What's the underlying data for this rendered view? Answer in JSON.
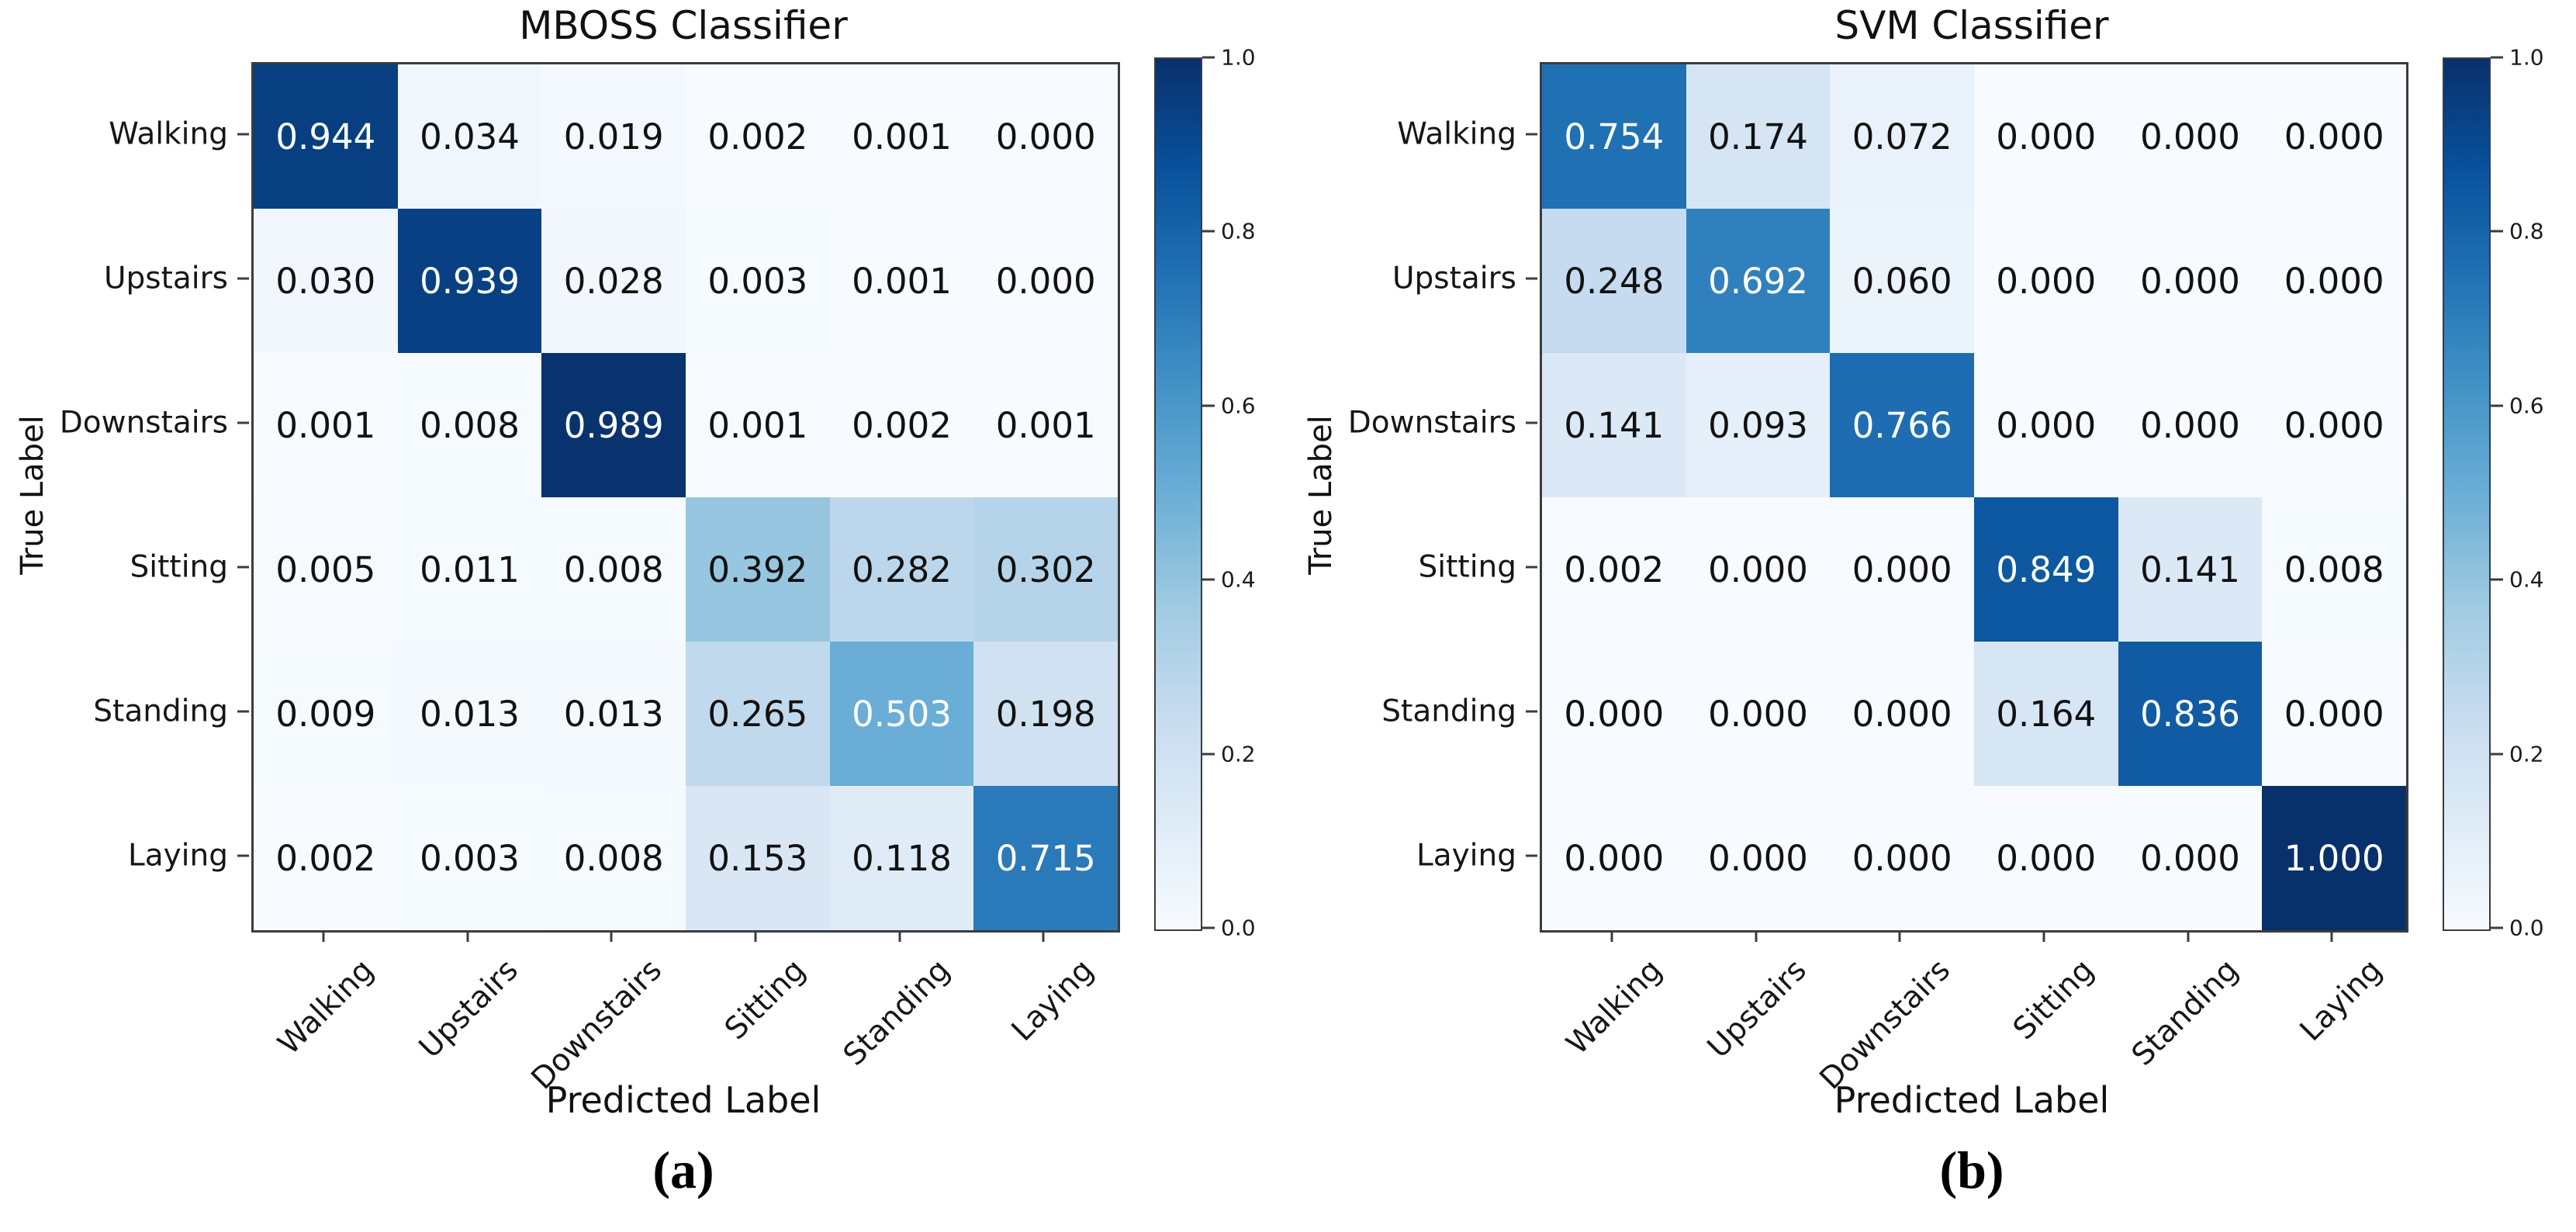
{
  "figure": {
    "caption_a": "(a)",
    "caption_b": "(b)"
  },
  "chart_data": [
    {
      "type": "heatmap",
      "title": "MBOSS Classifier",
      "xlabel": "Predicted Label",
      "ylabel": "True Label",
      "x_categories": [
        "Walking",
        "Upstairs",
        "Downstairs",
        "Sitting",
        "Standing",
        "Laying"
      ],
      "y_categories": [
        "Walking",
        "Upstairs",
        "Downstairs",
        "Sitting",
        "Standing",
        "Laying"
      ],
      "rows": [
        [
          0.944,
          0.034,
          0.019,
          0.002,
          0.001,
          0.0
        ],
        [
          0.03,
          0.939,
          0.028,
          0.003,
          0.001,
          0.0
        ],
        [
          0.001,
          0.008,
          0.989,
          0.001,
          0.002,
          0.001
        ],
        [
          0.005,
          0.011,
          0.008,
          0.392,
          0.282,
          0.302
        ],
        [
          0.009,
          0.013,
          0.013,
          0.265,
          0.503,
          0.198
        ],
        [
          0.002,
          0.003,
          0.008,
          0.153,
          0.118,
          0.715
        ]
      ],
      "value_range": [
        0,
        1
      ],
      "colormap": "Blues",
      "colorbar_ticks": [
        "1.0",
        "0.8",
        "0.6",
        "0.4",
        "0.2",
        "0.0"
      ],
      "legend_position": "right"
    },
    {
      "type": "heatmap",
      "title": "SVM Classifier",
      "xlabel": "Predicted Label",
      "ylabel": "True Label",
      "x_categories": [
        "Walking",
        "Upstairs",
        "Downstairs",
        "Sitting",
        "Standing",
        "Laying"
      ],
      "y_categories": [
        "Walking",
        "Upstairs",
        "Downstairs",
        "Sitting",
        "Standing",
        "Laying"
      ],
      "rows": [
        [
          0.754,
          0.174,
          0.072,
          0.0,
          0.0,
          0.0
        ],
        [
          0.248,
          0.692,
          0.06,
          0.0,
          0.0,
          0.0
        ],
        [
          0.141,
          0.093,
          0.766,
          0.0,
          0.0,
          0.0
        ],
        [
          0.002,
          0.0,
          0.0,
          0.849,
          0.141,
          0.008
        ],
        [
          0.0,
          0.0,
          0.0,
          0.164,
          0.836,
          0.0
        ],
        [
          0.0,
          0.0,
          0.0,
          0.0,
          0.0,
          1.0
        ]
      ],
      "value_range": [
        0,
        1
      ],
      "colormap": "Blues",
      "colorbar_ticks": [
        "1.0",
        "0.8",
        "0.6",
        "0.4",
        "0.2",
        "0.0"
      ],
      "legend_position": "right"
    }
  ],
  "colors": {
    "background": "#ffffff",
    "text": "#111111",
    "cell_text_dark": "#111111",
    "cell_text_light": "#ffffff",
    "spine": "#3c3c3c",
    "white_text_threshold": 0.5,
    "blues_colormap_anchors": [
      "#f7fbff",
      "#deebf7",
      "#c6dbef",
      "#9ecae1",
      "#6baed6",
      "#4292c6",
      "#2171b5",
      "#08519c",
      "#08306b"
    ]
  }
}
